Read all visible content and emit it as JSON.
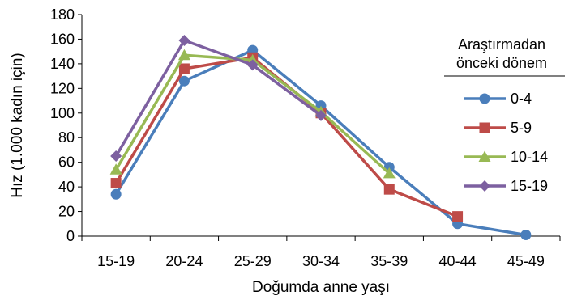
{
  "chart_data": {
    "type": "line",
    "xlabel": "Doğumda anne yaşı",
    "ylabel": "Hız (1.000 kadın için)",
    "categories": [
      "15-19",
      "20-24",
      "25-29",
      "30-34",
      "35-39",
      "40-44",
      "45-49"
    ],
    "ylim": [
      0,
      180
    ],
    "yticks": [
      0,
      20,
      40,
      60,
      80,
      100,
      120,
      140,
      160,
      180
    ],
    "grid": false,
    "legend": {
      "title_line1": "Araştırmadan",
      "title_line2": "önceki dönem",
      "position": "right"
    },
    "series": [
      {
        "name": "0-4",
        "color": "#4a7ebb",
        "marker": "circle",
        "values": [
          34,
          126,
          151,
          106,
          56,
          10,
          1
        ]
      },
      {
        "name": "5-9",
        "color": "#be4b48",
        "marker": "square",
        "values": [
          43,
          136,
          145,
          100,
          38,
          16,
          null
        ]
      },
      {
        "name": "10-14",
        "color": "#98b954",
        "marker": "triangle",
        "values": [
          54,
          147,
          143,
          101,
          51,
          null,
          null
        ]
      },
      {
        "name": "15-19",
        "color": "#7d60a0",
        "marker": "diamond",
        "values": [
          65,
          159,
          139,
          98,
          null,
          null,
          null
        ]
      }
    ]
  }
}
